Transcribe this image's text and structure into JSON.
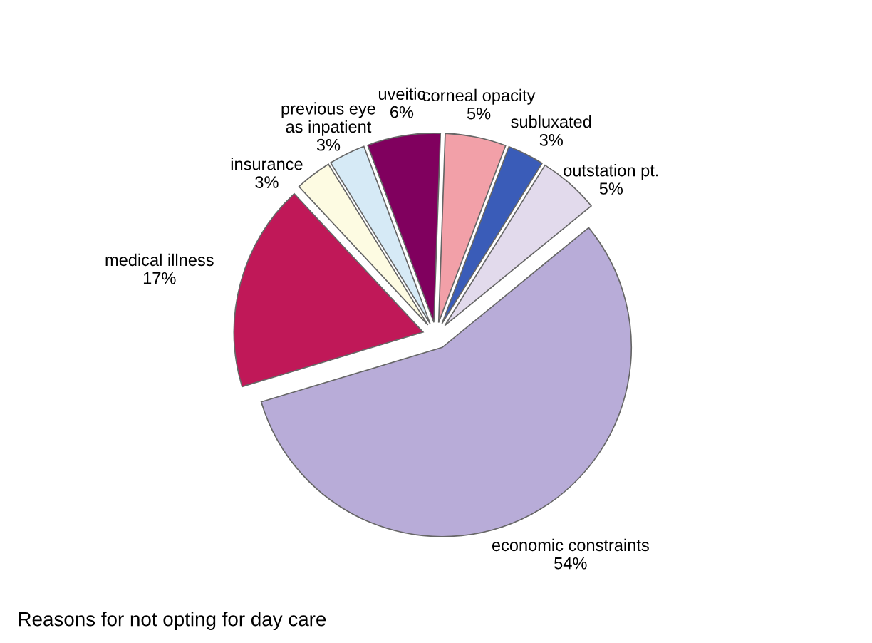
{
  "chart_data": {
    "type": "pie",
    "categories": [
      "corneal opacity",
      "subluxated",
      "outstation pt.",
      "economic constraints",
      "medical illness",
      "insurance",
      "previous eye as inpatient",
      "uveitic"
    ],
    "values": [
      5,
      3,
      5,
      54,
      17,
      3,
      3,
      6
    ],
    "value_labels": [
      "5%",
      "3%",
      "5%",
      "54%",
      "17%",
      "3%",
      "3%",
      "6%"
    ],
    "colors": [
      "#f2a0a8",
      "#3a5cb8",
      "#e2daec",
      "#b8acd8",
      "#c01858",
      "#fdfbe2",
      "#d6eaf6",
      "#80005e"
    ],
    "annotations": [
      "Reasons for not opting for day care"
    ]
  }
}
